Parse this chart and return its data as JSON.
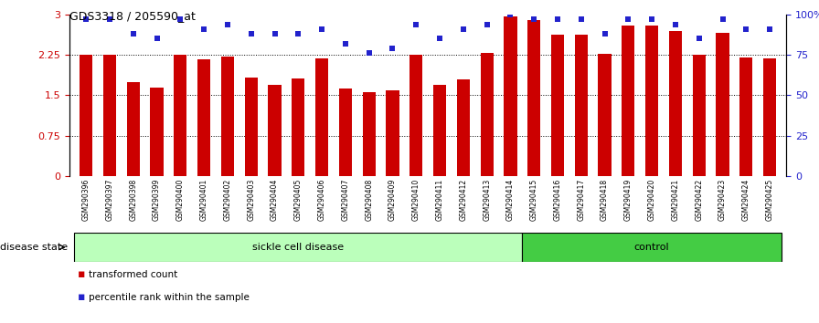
{
  "title": "GDS3318 / 205590_at",
  "samples": [
    "GSM290396",
    "GSM290397",
    "GSM290398",
    "GSM290399",
    "GSM290400",
    "GSM290401",
    "GSM290402",
    "GSM290403",
    "GSM290404",
    "GSM290405",
    "GSM290406",
    "GSM290407",
    "GSM290408",
    "GSM290409",
    "GSM290410",
    "GSM290411",
    "GSM290412",
    "GSM290413",
    "GSM290414",
    "GSM290415",
    "GSM290416",
    "GSM290417",
    "GSM290418",
    "GSM290419",
    "GSM290420",
    "GSM290421",
    "GSM290422",
    "GSM290423",
    "GSM290424",
    "GSM290425"
  ],
  "bar_values": [
    2.25,
    2.26,
    1.75,
    1.65,
    2.26,
    2.17,
    2.22,
    1.83,
    1.7,
    1.82,
    2.18,
    1.62,
    1.55,
    1.6,
    2.26,
    1.7,
    1.8,
    2.28,
    2.97,
    2.9,
    2.62,
    2.62,
    2.27,
    2.8,
    2.8,
    2.7,
    2.25,
    2.66,
    2.2,
    2.18
  ],
  "dot_values_pct": [
    97,
    97,
    88,
    85,
    97,
    91,
    94,
    88,
    88,
    88,
    91,
    82,
    76,
    79,
    94,
    85,
    91,
    94,
    100,
    97,
    97,
    97,
    88,
    97,
    97,
    94,
    85,
    97,
    91,
    91
  ],
  "sickle_count": 19,
  "control_count": 11,
  "bar_color": "#cc0000",
  "dot_color": "#2222cc",
  "sickle_color": "#bbffbb",
  "control_color": "#44cc44",
  "ylim_left": [
    0,
    3
  ],
  "ylim_right": [
    0,
    100
  ],
  "yticks_left": [
    0,
    0.75,
    1.5,
    2.25,
    3
  ],
  "ytick_labels_left": [
    "0",
    "0.75",
    "1.5",
    "2.25",
    "3"
  ],
  "yticks_right": [
    0,
    25,
    50,
    75,
    100
  ],
  "ytick_labels_right": [
    "0",
    "25",
    "50",
    "75",
    "100%"
  ],
  "hlines": [
    0.75,
    1.5,
    2.25
  ],
  "bg_color": "#ffffff",
  "tick_bg_color": "#dddddd"
}
